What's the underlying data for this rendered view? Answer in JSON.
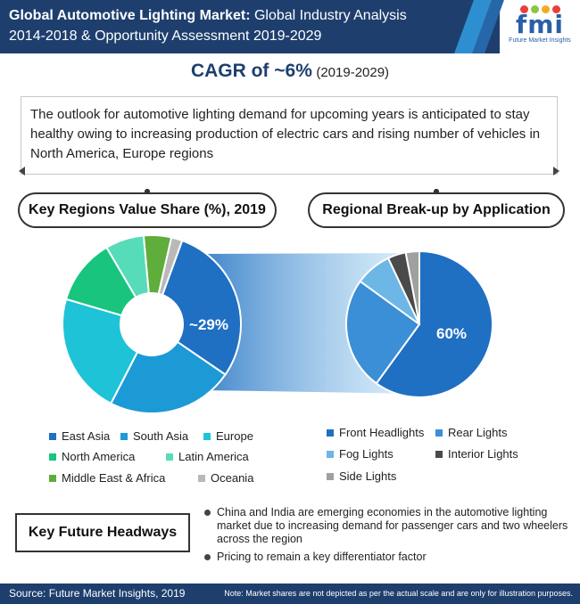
{
  "header": {
    "title_bold": "Global Automotive Lighting Market:",
    "title_rest": " Global Industry Analysis",
    "title_line2": "2014-2018 & Opportunity Assessment 2019-2029"
  },
  "logo": {
    "word": "fmi",
    "subtitle": "Future Market Insights",
    "dot_colors": [
      "#e8403a",
      "#8dc63f",
      "#f7a823",
      "#e8403a"
    ]
  },
  "cagr": {
    "main": "CAGR of ~6%",
    "period": "(2019-2029)"
  },
  "outlook": {
    "text": "The outlook for automotive lighting demand for upcoming years is anticipated to stay healthy owing to increasing production of electric cars and rising number of vehicles in North America, Europe regions"
  },
  "sections": {
    "left_title": "Key Regions Value Share (%), 2019",
    "right_title": "Regional Break-up by Application"
  },
  "colors": {
    "brand_dark": "#1e3f6e",
    "east_asia": "#1f6fc2",
    "south_asia": "#1b9ad6",
    "europe": "#1fc3d8",
    "north_america": "#18c47e",
    "latin_america": "#56dcb8",
    "mea": "#5fad3a",
    "oceania": "#b9b9b9"
  },
  "chart_data": [
    {
      "type": "pie",
      "title": "Key Regions Value Share (%), 2019",
      "donut": true,
      "categories": [
        "East Asia",
        "South Asia",
        "Europe",
        "North America",
        "Latin America",
        "Middle East & Africa",
        "Oceania"
      ],
      "values": [
        29,
        23,
        22,
        12,
        7,
        5,
        2
      ],
      "colors": [
        "#1f6fc2",
        "#1b9ad6",
        "#1fc3d8",
        "#18c47e",
        "#56dcb8",
        "#5fad3a",
        "#b9b9b9"
      ],
      "data_labels": [
        {
          "category": "East Asia",
          "text": "~29%"
        }
      ],
      "legend": "bottom"
    },
    {
      "type": "pie",
      "title": "Regional Break-up by Application",
      "donut": false,
      "categories": [
        "Front Headlights",
        "Rear Lights",
        "Fog Lights",
        "Interior Lights",
        "Side Lights"
      ],
      "values": [
        60,
        25,
        8,
        4,
        3
      ],
      "colors": [
        "#1f6fc2",
        "#3a8fd6",
        "#6cb7e6",
        "#4a4a4a",
        "#a0a0a0"
      ],
      "data_labels": [
        {
          "category": "Front Headlights",
          "text": "60%"
        }
      ],
      "legend": "bottom"
    }
  ],
  "headways": {
    "title": "Key Future Headways",
    "bullets": [
      "China and India are emerging economies in the automotive lighting market due to increasing demand for passenger cars and two wheelers across the region",
      "Pricing to remain a key differentiator factor"
    ]
  },
  "footer": {
    "source": "Source: Future Market Insights, 2019",
    "note": "Note: Market shares are not depicted as per the actual scale and are only for illustration purposes."
  }
}
